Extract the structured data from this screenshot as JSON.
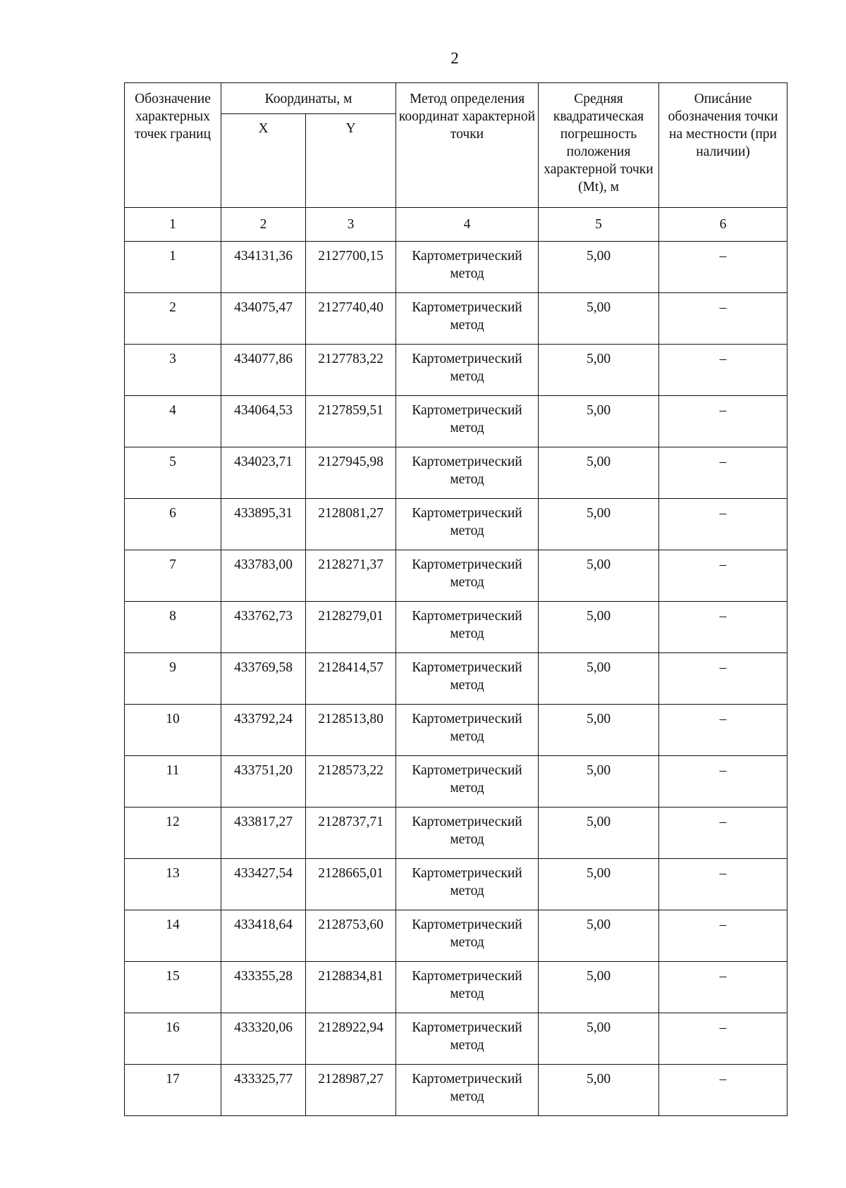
{
  "page_number": "2",
  "table": {
    "headers": {
      "point": "Обозначение характерных точек границ",
      "coords": "Координаты, м",
      "x": "X",
      "y": "Y",
      "method": "Метод определения координат характерной точки",
      "error": "Средняя квадратическая погрешность положения характерной точки (Mt), м",
      "description": "Описáние обозначения точки на местности (при наличии)"
    },
    "column_numbers": [
      "1",
      "2",
      "3",
      "4",
      "5",
      "6"
    ],
    "rows": [
      {
        "n": "1",
        "x": "434131,36",
        "y": "2127700,15",
        "method": "Картометрический метод",
        "mt": "5,00",
        "desc": "–"
      },
      {
        "n": "2",
        "x": "434075,47",
        "y": "2127740,40",
        "method": "Картометрический метод",
        "mt": "5,00",
        "desc": "–"
      },
      {
        "n": "3",
        "x": "434077,86",
        "y": "2127783,22",
        "method": "Картометрический метод",
        "mt": "5,00",
        "desc": "–"
      },
      {
        "n": "4",
        "x": "434064,53",
        "y": "2127859,51",
        "method": "Картометрический метод",
        "mt": "5,00",
        "desc": "–"
      },
      {
        "n": "5",
        "x": "434023,71",
        "y": "2127945,98",
        "method": "Картометрический метод",
        "mt": "5,00",
        "desc": "–"
      },
      {
        "n": "6",
        "x": "433895,31",
        "y": "2128081,27",
        "method": "Картометрический метод",
        "mt": "5,00",
        "desc": "–"
      },
      {
        "n": "7",
        "x": "433783,00",
        "y": "2128271,37",
        "method": "Картометрический метод",
        "mt": "5,00",
        "desc": "–"
      },
      {
        "n": "8",
        "x": "433762,73",
        "y": "2128279,01",
        "method": "Картометрический метод",
        "mt": "5,00",
        "desc": "–"
      },
      {
        "n": "9",
        "x": "433769,58",
        "y": "2128414,57",
        "method": "Картометрический метод",
        "mt": "5,00",
        "desc": "–"
      },
      {
        "n": "10",
        "x": "433792,24",
        "y": "2128513,80",
        "method": "Картометрический метод",
        "mt": "5,00",
        "desc": "–"
      },
      {
        "n": "11",
        "x": "433751,20",
        "y": "2128573,22",
        "method": "Картометрический метод",
        "mt": "5,00",
        "desc": "–"
      },
      {
        "n": "12",
        "x": "433817,27",
        "y": "2128737,71",
        "method": "Картометрический метод",
        "mt": "5,00",
        "desc": "–"
      },
      {
        "n": "13",
        "x": "433427,54",
        "y": "2128665,01",
        "method": "Картометрический метод",
        "mt": "5,00",
        "desc": "–"
      },
      {
        "n": "14",
        "x": "433418,64",
        "y": "2128753,60",
        "method": "Картометрический метод",
        "mt": "5,00",
        "desc": "–"
      },
      {
        "n": "15",
        "x": "433355,28",
        "y": "2128834,81",
        "method": "Картометрический метод",
        "mt": "5,00",
        "desc": "–"
      },
      {
        "n": "16",
        "x": "433320,06",
        "y": "2128922,94",
        "method": "Картометрический метод",
        "mt": "5,00",
        "desc": "–"
      },
      {
        "n": "17",
        "x": "433325,77",
        "y": "2128987,27",
        "method": "Картометрический метод",
        "mt": "5,00",
        "desc": "–"
      }
    ]
  }
}
